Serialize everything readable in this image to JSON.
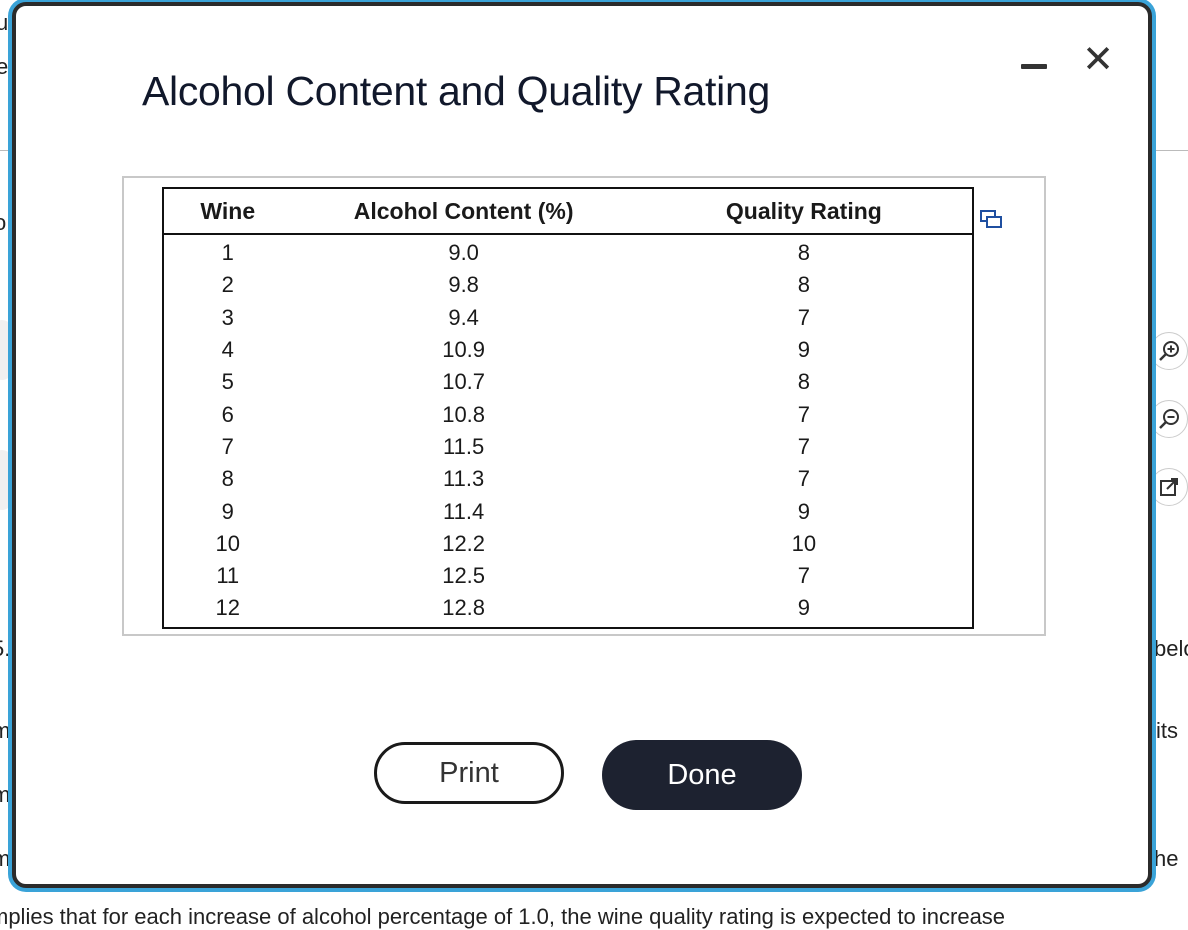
{
  "background": {
    "fragments": [
      "ug",
      "ev",
      "o",
      "5.",
      "m",
      "m",
      "m",
      "belo",
      "its",
      "he",
      "mplies that for each increase of alcohol percentage of 1.0, the wine quality rating is expected to increase"
    ]
  },
  "modal": {
    "title": "Alcohol Content and Quality Rating",
    "minimize_icon": "minimize-icon",
    "close_icon": "close-icon",
    "close_glyph": "✕",
    "copy_icon": "copy-icon"
  },
  "table": {
    "headers": [
      "Wine",
      "Alcohol Content (%)",
      "Quality Rating"
    ],
    "rows": [
      [
        "1",
        "9.0",
        "8"
      ],
      [
        "2",
        "9.8",
        "8"
      ],
      [
        "3",
        "9.4",
        "7"
      ],
      [
        "4",
        "10.9",
        "9"
      ],
      [
        "5",
        "10.7",
        "8"
      ],
      [
        "6",
        "10.8",
        "7"
      ],
      [
        "7",
        "11.5",
        "7"
      ],
      [
        "8",
        "11.3",
        "7"
      ],
      [
        "9",
        "11.4",
        "9"
      ],
      [
        "10",
        "12.2",
        "10"
      ],
      [
        "11",
        "12.5",
        "7"
      ],
      [
        "12",
        "12.8",
        "9"
      ]
    ]
  },
  "buttons": {
    "print_label": "Print",
    "done_label": "Done"
  },
  "side_tools": {
    "zoom_in_icon": "zoom-in-icon",
    "zoom_out_icon": "zoom-out-icon",
    "expand_icon": "expand-icon"
  },
  "colors": {
    "modal_border": "#2b2b2b",
    "modal_glow": "#3aa3d8",
    "done_bg": "#1d2230",
    "title": "#11182b"
  }
}
